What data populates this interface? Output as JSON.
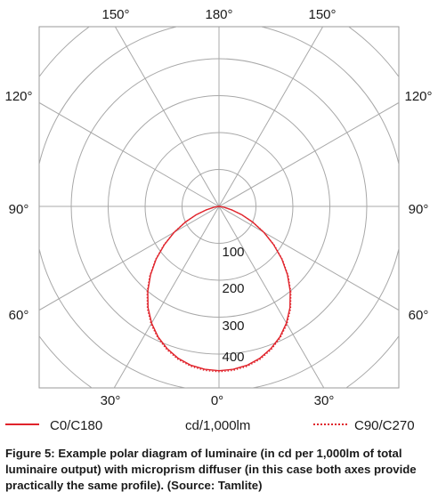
{
  "chart_data": {
    "type": "polar",
    "angle_labels": {
      "top_left": "150°",
      "top_center": "180°",
      "top_right": "150°",
      "upper_left": "120°",
      "upper_right": "120°",
      "mid_left": "90°",
      "mid_right": "90°",
      "lower_left": "60°",
      "lower_right": "60°",
      "bottom_left": "30°",
      "bottom_center": "0°",
      "bottom_right": "30°"
    },
    "radial_ticks": [
      100,
      200,
      300,
      400
    ],
    "radial_tick_labels": [
      "100",
      "200",
      "300",
      "400"
    ],
    "radial_max": 500,
    "radial_rings": [
      100,
      200,
      300,
      400,
      500
    ],
    "spoke_angles_deg": [
      0,
      30,
      60,
      90,
      120,
      150,
      180
    ],
    "unit_label": "cd/1,000lm",
    "series": [
      {
        "name": "C0/C180",
        "style": "solid",
        "color": "#e0232b",
        "angles_deg": [
          0,
          5,
          10,
          15,
          20,
          25,
          30,
          35,
          40,
          45,
          50,
          55,
          60,
          65,
          70,
          75,
          80,
          85,
          90
        ],
        "values": [
          445,
          443,
          437,
          426,
          410,
          390,
          365,
          335,
          300,
          262,
          222,
          180,
          140,
          100,
          65,
          35,
          14,
          3,
          0
        ]
      },
      {
        "name": "C90/C270",
        "style": "dotted",
        "color": "#e0232b",
        "angles_deg": [
          0,
          5,
          10,
          15,
          20,
          25,
          30,
          35,
          40,
          45,
          50,
          55,
          60,
          65,
          70,
          75,
          80,
          85,
          90
        ],
        "values": [
          448,
          446,
          440,
          429,
          413,
          393,
          368,
          338,
          303,
          265,
          225,
          183,
          142,
          102,
          66,
          36,
          15,
          3,
          0
        ]
      }
    ],
    "grid": true
  },
  "legend": {
    "series_a": "C0/C180",
    "unit": "cd/1,000lm",
    "series_b": "C90/C270"
  },
  "caption": "Figure 5: Example polar diagram of luminaire (in cd per 1,000lm of total luminaire output) with microprism diffuser (in this case both axes provide practically the same profile). (Source: Tamlite)"
}
